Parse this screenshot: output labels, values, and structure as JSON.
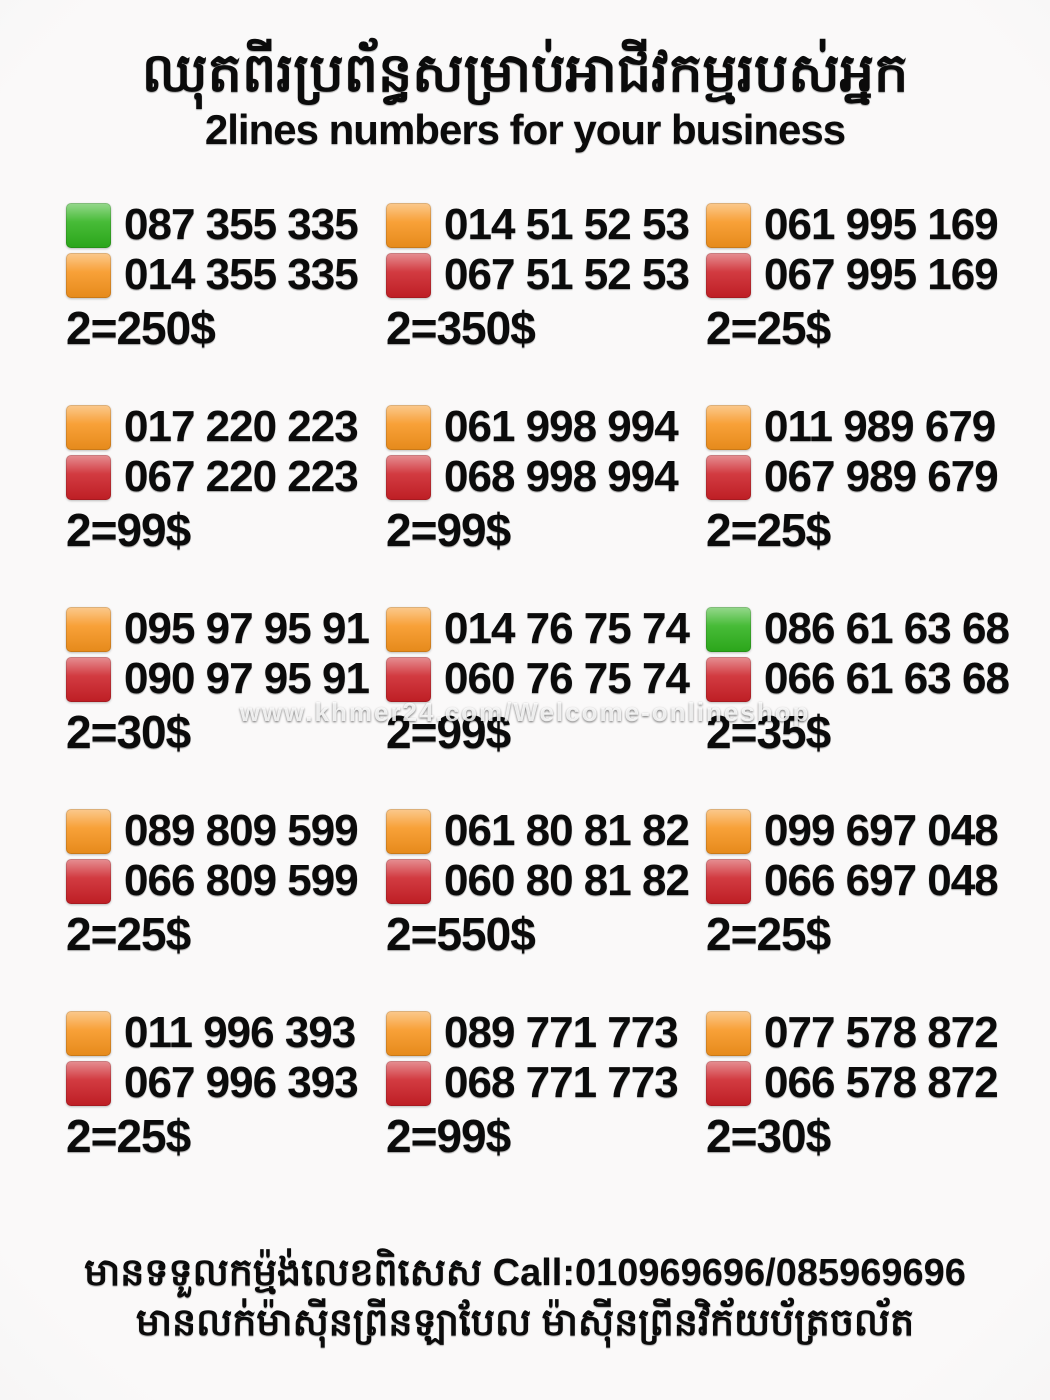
{
  "title_khmer": "ឈុតពីរប្រព័ន្ធសម្រាប់អាជីវកម្មរបស់អ្នក",
  "subtitle": "2lines numbers for your business",
  "watermark": "www.khmer24.com/Welcome-onlineshop",
  "colors": {
    "green": "#2eb21c",
    "orange": "#f7941d",
    "red": "#cc2027"
  },
  "offers": [
    {
      "lines": [
        {
          "color": "green",
          "number": "087 355 335"
        },
        {
          "color": "orange",
          "number": "014 355 335"
        }
      ],
      "price": "2=250$"
    },
    {
      "lines": [
        {
          "color": "orange",
          "number": "014 51 52 53"
        },
        {
          "color": "red",
          "number": "067 51 52 53"
        }
      ],
      "price": "2=350$"
    },
    {
      "lines": [
        {
          "color": "orange",
          "number": "061 995 169"
        },
        {
          "color": "red",
          "number": "067 995 169"
        }
      ],
      "price": "2=25$"
    },
    {
      "lines": [
        {
          "color": "orange",
          "number": "017 220 223"
        },
        {
          "color": "red",
          "number": "067 220 223"
        }
      ],
      "price": "2=99$"
    },
    {
      "lines": [
        {
          "color": "orange",
          "number": "061 998 994"
        },
        {
          "color": "red",
          "number": "068 998 994"
        }
      ],
      "price": "2=99$"
    },
    {
      "lines": [
        {
          "color": "orange",
          "number": "011 989 679"
        },
        {
          "color": "red",
          "number": "067 989 679"
        }
      ],
      "price": "2=25$"
    },
    {
      "lines": [
        {
          "color": "orange",
          "number": "095 97 95 91"
        },
        {
          "color": "red",
          "number": "090 97 95 91"
        }
      ],
      "price": "2=30$"
    },
    {
      "lines": [
        {
          "color": "orange",
          "number": "014 76 75 74"
        },
        {
          "color": "red",
          "number": "060 76 75 74"
        }
      ],
      "price": "2=99$"
    },
    {
      "lines": [
        {
          "color": "green",
          "number": "086 61 63 68"
        },
        {
          "color": "red",
          "number": "066 61 63 68"
        }
      ],
      "price": "2=35$"
    },
    {
      "lines": [
        {
          "color": "orange",
          "number": "089 809 599"
        },
        {
          "color": "red",
          "number": "066 809 599"
        }
      ],
      "price": "2=25$"
    },
    {
      "lines": [
        {
          "color": "orange",
          "number": "061 80 81 82"
        },
        {
          "color": "red",
          "number": "060 80 81 82"
        }
      ],
      "price": "2=550$"
    },
    {
      "lines": [
        {
          "color": "orange",
          "number": "099 697 048"
        },
        {
          "color": "red",
          "number": "066 697 048"
        }
      ],
      "price": "2=25$"
    },
    {
      "lines": [
        {
          "color": "orange",
          "number": "011 996 393"
        },
        {
          "color": "red",
          "number": "067 996 393"
        }
      ],
      "price": "2=25$"
    },
    {
      "lines": [
        {
          "color": "orange",
          "number": "089 771 773"
        },
        {
          "color": "red",
          "number": "068 771 773"
        }
      ],
      "price": "2=99$"
    },
    {
      "lines": [
        {
          "color": "orange",
          "number": "077 578 872"
        },
        {
          "color": "red",
          "number": "066 578 872"
        }
      ],
      "price": "2=30$"
    }
  ],
  "footer": {
    "line1_khmer": "មានទទួលកម្ម៉ង់លេខពិសេស",
    "line1_call": "Call:010969696/085969696",
    "line2_khmer": "មានលក់ម៉ាស៊ីនព្រីនឡាបែល ម៉ាស៊ីនព្រីនវិក័យប័ត្រចល័ត"
  }
}
